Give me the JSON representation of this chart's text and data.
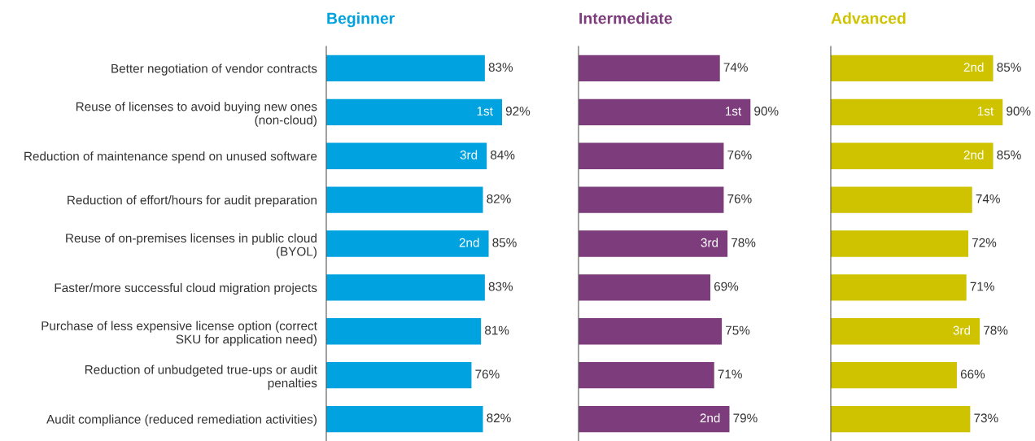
{
  "chart_data": [
    {
      "type": "bar",
      "orientation": "horizontal",
      "title": "Beginner",
      "tick_labels": "y",
      "data_labels": true,
      "categories": [
        "Better negotiation of vendor contracts",
        "Reuse of licenses to avoid buying new ones\n(non-cloud)",
        "Reduction of maintenance spend on unused software",
        "Reduction of effort/hours for audit preparation",
        "Reuse of on-premises licenses in public cloud\n(BYOL)",
        "Faster/more successful cloud migration projects",
        "Purchase of less expensive license option (correct\nSKU for application need)",
        "Reduction of unbudgeted true-ups or audit\npenalties",
        "Audit compliance (reduced remediation activities)"
      ],
      "series": [
        {
          "color": "#00a3e0",
          "values": [
            83,
            92,
            84,
            82,
            85,
            83,
            81,
            76,
            82
          ],
          "value_labels": [
            "83%",
            "92%",
            "84%",
            "82%",
            "85%",
            "83%",
            "81%",
            "76%",
            "82%"
          ]
        }
      ],
      "annotations": [
        {
          "text": "1st",
          "x": 92,
          "y": "Reuse of licenses to avoid buying new ones\n(non-cloud)"
        },
        {
          "text": "2nd",
          "x": 85,
          "y": "Reuse of on-premises licenses in public cloud\n(BYOL)"
        },
        {
          "text": "3rd",
          "x": 84,
          "y": "Reduction of maintenance spend on unused software"
        }
      ]
    },
    {
      "type": "bar",
      "orientation": "horizontal",
      "title": "Intermediate",
      "tick_labels": false,
      "data_labels": true,
      "categories": [
        "Better negotiation of vendor contracts",
        "Reuse of licenses to avoid buying new ones\n(non-cloud)",
        "Reduction of maintenance spend on unused software",
        "Reduction of effort/hours for audit preparation",
        "Reuse of on-premises licenses in public cloud\n(BYOL)",
        "Faster/more successful cloud migration projects",
        "Purchase of less expensive license option (correct\nSKU for application need)",
        "Reduction of unbudgeted true-ups or audit\npenalties",
        "Audit compliance (reduced remediation activities)"
      ],
      "series": [
        {
          "color": "#7d3c7b",
          "values": [
            74,
            90,
            76,
            76,
            78,
            69,
            75,
            71,
            79
          ],
          "value_labels": [
            "74%",
            "90%",
            "76%",
            "76%",
            "78%",
            "69%",
            "75%",
            "71%",
            "79%"
          ]
        }
      ],
      "annotations": [
        {
          "text": "1st",
          "x": 90,
          "y": "Reuse of licenses to avoid buying new ones\n(non-cloud)"
        },
        {
          "text": "3rd",
          "x": 78,
          "y": "Reuse of on-premises licenses in public cloud\n(BYOL)"
        },
        {
          "text": "2nd",
          "x": 79,
          "y": "Audit compliance (reduced remediation activities)"
        }
      ]
    },
    {
      "type": "bar",
      "orientation": "horizontal",
      "title": "Advanced",
      "tick_labels": false,
      "data_labels": true,
      "categories": [
        "Better negotiation of vendor contracts",
        "Reuse of licenses to avoid buying new ones\n(non-cloud)",
        "Reduction of maintenance spend on unused software",
        "Reduction of effort/hours for audit preparation",
        "Reuse of on-premises licenses in public cloud\n(BYOL)",
        "Faster/more successful cloud migration projects",
        "Purchase of less expensive license option (correct\nSKU for application need)",
        "Reduction of unbudgeted true-ups or audit\npenalties",
        "Audit compliance (reduced remediation activities)"
      ],
      "series": [
        {
          "color": "#cfc300",
          "values": [
            85,
            90,
            85,
            74,
            72,
            71,
            78,
            66,
            73
          ],
          "value_labels": [
            "85%",
            "90%",
            "85%",
            "74%",
            "72%",
            "71%",
            "78%",
            "66%",
            "73%"
          ]
        }
      ],
      "annotations": [
        {
          "text": "2nd",
          "x": 85,
          "y": "Better negotiation of vendor contracts"
        },
        {
          "text": "1st",
          "x": 90,
          "y": "Reuse of licenses to avoid buying new ones\n(non-cloud)"
        },
        {
          "text": "2nd",
          "x": 85,
          "y": "Reduction of maintenance spend on unused software"
        },
        {
          "text": "3rd",
          "x": 78,
          "y": "Purchase of less expensive license option (correct\nSKU for application need)"
        }
      ]
    }
  ]
}
